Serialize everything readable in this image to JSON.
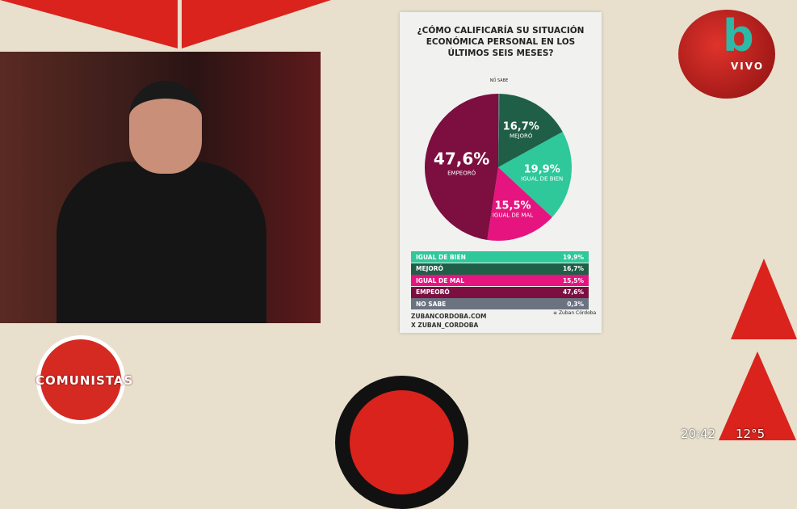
{
  "broadcast": {
    "channel_logo": "b",
    "live_label": "VIVO",
    "show_logo": "COMUNISTAS",
    "time": "20:42",
    "temperature": "12°5"
  },
  "chart_data": {
    "type": "pie",
    "title": "¿CÓMO CALIFICARÍA SU SITUACIÓN ECONÓMICA PERSONAL EN LOS ÚLTIMOS SEIS MESES?",
    "slices": [
      {
        "label": "NO SABE",
        "value": 0.3,
        "display": "0,3%",
        "color": "#6b7280"
      },
      {
        "label": "MEJORÓ",
        "value": 16.7,
        "display": "16,7%",
        "color": "#1f5e47"
      },
      {
        "label": "IGUAL DE BIEN",
        "value": 19.9,
        "display": "19,9%",
        "color": "#2ec89a"
      },
      {
        "label": "IGUAL DE MAL",
        "value": 15.5,
        "display": "15,5%",
        "color": "#e5147f"
      },
      {
        "label": "EMPEORÓ",
        "value": 47.6,
        "display": "47,6%",
        "color": "#7c0e40"
      }
    ],
    "legend": [
      {
        "label": "IGUAL DE BIEN",
        "display": "19,9%",
        "color": "#2ec89a"
      },
      {
        "label": "MEJORÓ",
        "display": "16,7%",
        "color": "#1f5e47"
      },
      {
        "label": "IGUAL DE MAL",
        "display": "15,5%",
        "color": "#e5147f"
      },
      {
        "label": "EMPEORÓ",
        "display": "47,6%",
        "color": "#7c0e40"
      },
      {
        "label": "NO SABE",
        "display": "0,3%",
        "color": "#6b7280"
      }
    ],
    "legend_placement": "bottom"
  },
  "footer": {
    "website": "ZUBANCORDOBA.COM",
    "social": "X ZUBAN_CORDOBA",
    "logo": "Zuban Córdoba"
  }
}
